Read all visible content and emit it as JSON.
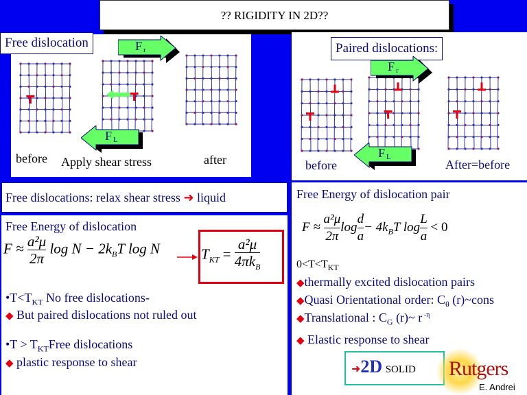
{
  "title": "?? RIGIDITY IN  2D??",
  "colors": {
    "background": "#0000f0",
    "text": "#0a0a78",
    "accent_red": "#e00010",
    "arrow_green": "#66ff66",
    "solid_box": "#20c0a0"
  },
  "free_panel": {
    "label": "Free dislocation",
    "before": "before",
    "apply": "Apply shear stress",
    "after": "after",
    "force_right": "F",
    "force_right_sub": "r",
    "force_left": "F",
    "force_left_sub": "L"
  },
  "paired_panel": {
    "label": "Paired  dislocations:",
    "before": "before",
    "after": "After=before",
    "force_right": "F",
    "force_right_sub": "r",
    "force_left": "F",
    "force_left_sub": "L"
  },
  "relax_bar": {
    "text": "Free dislocations:  relax shear stress",
    "arrow": "➜",
    "result": "liquid"
  },
  "left_bottom": {
    "heading": "Free Energy of dislocation",
    "eq_F": "F ≈",
    "eq_num": "a²μ",
    "eq_den": "2π",
    "eq_rest": "log N − 2k",
    "eq_B": "B",
    "eq_rest2": "T log N",
    "tkt_lhs": "T",
    "tkt_sub": "KT",
    "tkt_eq": "=",
    "tkt_num": "a²μ",
    "tkt_den": "4πk",
    "tkt_den_sub": "B",
    "b1_pre": "•T<T",
    "b1_sub": "KT",
    "b1_post": "  No free dislocations-",
    "b1_sub_item": "But paired dislocations not ruled out",
    "b2_pre": "•T > T",
    "b2_sub": "KT",
    "b2_post": "Free dislocations",
    "b2_sub_item": "plastic response to shear"
  },
  "right_bottom": {
    "heading": "Free Energy of dislocation pair",
    "eq_F": "F ≈",
    "eq_num": "a²μ",
    "eq_den": "2π",
    "eq_log": "log",
    "eq_d": "d",
    "eq_a": "a",
    "eq_mid": "− 4k",
    "eq_B": "B",
    "eq_mid2": "T log",
    "eq_L": "L",
    "eq_a2": "a",
    "eq_end": "< 0",
    "cond_pre": "0<T<T",
    "cond_sub": "KT",
    "items": [
      {
        "pre": "thermally excited dislocation pairs"
      },
      {
        "pre": "Quasi Orientational order: C",
        "sub": "θ",
        "post": " (r)~cons"
      },
      {
        "pre": "Translational :  C",
        "sub": "G",
        "post": " (r)~ r",
        "sup": " -η"
      },
      {
        "pre": " Elastic response to shear"
      }
    ],
    "solid_arrow": "➜",
    "solid_big": "2D",
    "solid_small": "SOLID",
    "logo": "Rutgers",
    "author": "E. Andrei"
  }
}
